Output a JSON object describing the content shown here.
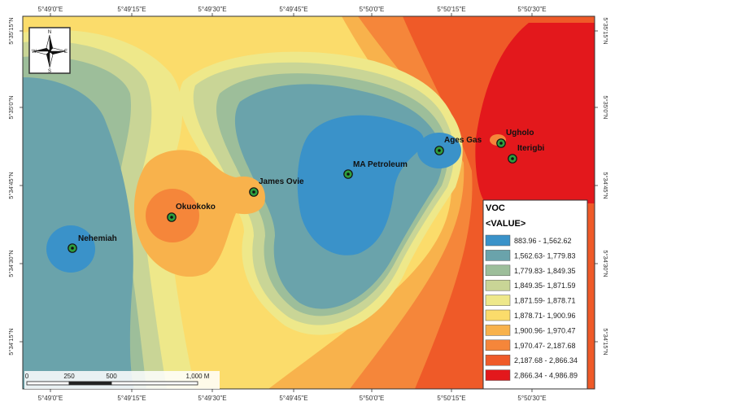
{
  "map": {
    "top_ticks": [
      "5°49'0\"E",
      "5°49'15\"E",
      "5°49'30\"E",
      "5°49'45\"E",
      "5°50'0\"E",
      "5°50'15\"E",
      "5°50'30\"E"
    ],
    "bottom_ticks": [
      "5°49'0\"E",
      "5°49'15\"E",
      "5°49'30\"E",
      "5°49'45\"E",
      "5°50'0\"E",
      "5°50'15\"E",
      "5°50'30\"E"
    ],
    "left_ticks": [
      "5°35'15\"N",
      "5°35'0\"N",
      "5°34'45\"N",
      "5°34'30\"N",
      "5°34'15\"N"
    ],
    "right_ticks": [
      "5°35'15\"N",
      "5°35'0\"N",
      "5°34'45\"N",
      "5°34'30\"N",
      "5°34'15\"N"
    ],
    "wells": [
      {
        "name": "Nehemiah"
      },
      {
        "name": "Okuokoko"
      },
      {
        "name": "James Ovie"
      },
      {
        "name": "MA Petroleum"
      },
      {
        "name": "Ages Gas"
      },
      {
        "name": "Ugholo"
      },
      {
        "name": "Iterigbi"
      }
    ],
    "legend": {
      "title": "VOC",
      "subtitle": "<VALUE>",
      "classes": [
        {
          "label": "883.96 - 1,562.62",
          "color": "#3a92c9"
        },
        {
          "label": "1,562.63- 1,779.83",
          "color": "#6aa3ab"
        },
        {
          "label": "1,779.83- 1,849.35",
          "color": "#9dbe9a"
        },
        {
          "label": "1,849.35- 1,871.59",
          "color": "#c9d596"
        },
        {
          "label": "1,871.59- 1,878.71",
          "color": "#eee88a"
        },
        {
          "label": "1,878.71- 1,900.96",
          "color": "#fbdc6b"
        },
        {
          "label": "1,900.96- 1,970.47",
          "color": "#f8b24c"
        },
        {
          "label": "1,970.47- 2,187.68",
          "color": "#f5863a"
        },
        {
          "label": "2,187.68 - 2,866.34",
          "color": "#ef5a28"
        },
        {
          "label": "2,866.34 - 4,986.89",
          "color": "#e3181c"
        }
      ]
    },
    "scale_bar": {
      "labels": [
        "0",
        "250",
        "500",
        "",
        "1,000 M"
      ]
    },
    "north_arrow": {
      "letters": [
        "N",
        "S",
        "W",
        "E"
      ]
    }
  }
}
